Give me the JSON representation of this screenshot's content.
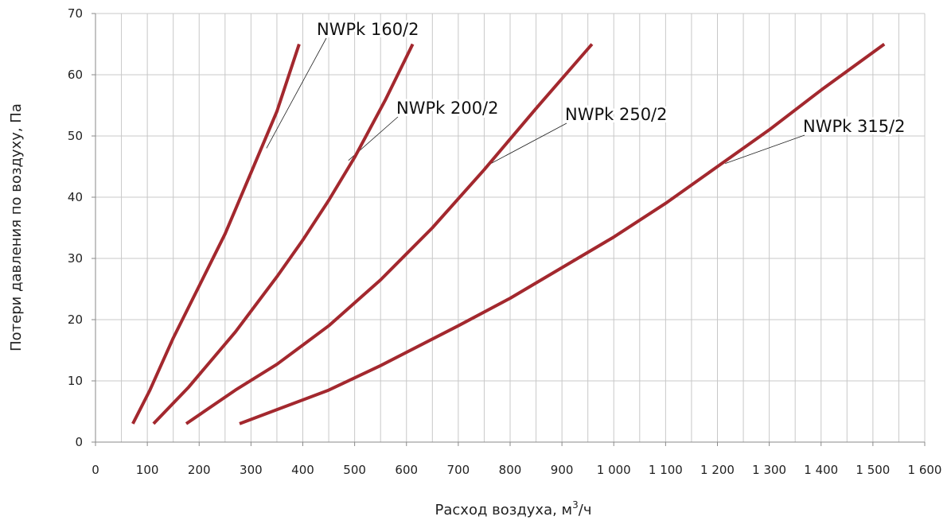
{
  "chart_data": {
    "type": "line",
    "xlabel_main": "Расход воздуха, м",
    "xlabel_sup": "3",
    "xlabel_tail": "/ч",
    "ylabel": "Потери давления по воздуху, Па",
    "xlim": [
      0,
      1600
    ],
    "ylim": [
      0,
      70
    ],
    "x_ticks": [
      0,
      100,
      200,
      300,
      400,
      500,
      600,
      700,
      800,
      900,
      1000,
      1100,
      1200,
      1300,
      1400,
      1500,
      1600
    ],
    "x_tick_labels": [
      "0",
      "100",
      "200",
      "300",
      "400",
      "500",
      "600",
      "700",
      "800",
      "900",
      "1 000",
      "1 100",
      "1 200",
      "1 300",
      "1 400",
      "1 500",
      "1 600"
    ],
    "y_ticks": [
      0,
      10,
      20,
      30,
      40,
      50,
      60,
      70
    ],
    "y_tick_labels": [
      "0",
      "10",
      "20",
      "30",
      "40",
      "50",
      "60",
      "70"
    ],
    "x_minor_step": 50,
    "grid": true,
    "line_color": "#a3282e",
    "series": [
      {
        "name": "NWPk 160/2",
        "points": [
          [
            72,
            3
          ],
          [
            105,
            8.5
          ],
          [
            150,
            17
          ],
          [
            200,
            25.5
          ],
          [
            250,
            34
          ],
          [
            300,
            44
          ],
          [
            350,
            54
          ],
          [
            393,
            65
          ]
        ],
        "callout_target": [
          330,
          48
        ]
      },
      {
        "name": "NWPk 200/2",
        "points": [
          [
            112,
            3
          ],
          [
            180,
            9
          ],
          [
            270,
            18
          ],
          [
            350,
            27
          ],
          [
            400,
            33
          ],
          [
            450,
            39.5
          ],
          [
            500,
            46.5
          ],
          [
            560,
            56
          ],
          [
            612,
            65
          ]
        ],
        "callout_target": [
          488,
          46
        ]
      },
      {
        "name": "NWPk 250/2",
        "points": [
          [
            175,
            3
          ],
          [
            270,
            8.5
          ],
          [
            350,
            12.7
          ],
          [
            450,
            19
          ],
          [
            550,
            26.5
          ],
          [
            650,
            35
          ],
          [
            750,
            44.5
          ],
          [
            850,
            54.5
          ],
          [
            958,
            65
          ]
        ],
        "callout_target": [
          763,
          45.5
        ]
      },
      {
        "name": "NWPk 315/2",
        "points": [
          [
            278,
            3
          ],
          [
            450,
            8.5
          ],
          [
            550,
            12.5
          ],
          [
            700,
            19
          ],
          [
            800,
            23.5
          ],
          [
            900,
            28.5
          ],
          [
            1000,
            33.5
          ],
          [
            1100,
            39
          ],
          [
            1200,
            45
          ],
          [
            1300,
            51
          ],
          [
            1400,
            57.5
          ],
          [
            1522,
            65
          ]
        ],
        "callout_target": [
          1215,
          45.5
        ]
      }
    ]
  }
}
